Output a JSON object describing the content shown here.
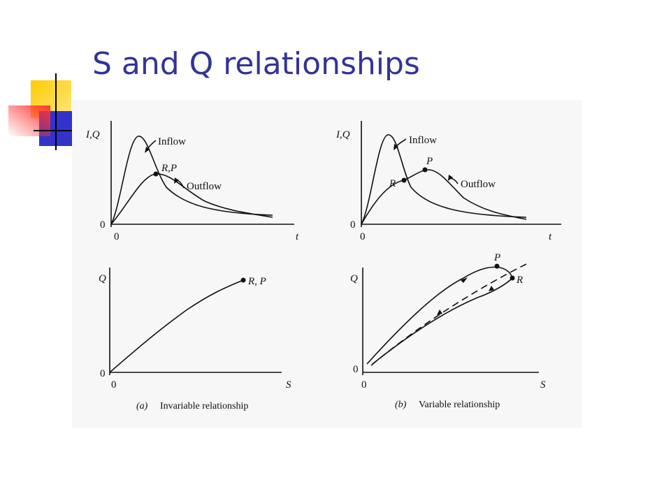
{
  "slide": {
    "title": "S and Q relationships"
  },
  "colors": {
    "title": "#333399",
    "deco_yellow": "#ffcc00",
    "deco_blue": "#3333cc",
    "deco_red": "#ff3333"
  },
  "panels": {
    "a_top": {
      "y_label": "I,Q",
      "x_label": "t",
      "origin": "0",
      "origin_left": "0",
      "inflow": "Inflow",
      "outflow": "Outflow",
      "point": "R,P"
    },
    "b_top": {
      "y_label": "I,Q",
      "x_label": "t",
      "origin": "0",
      "origin_left": "0",
      "inflow": "Inflow",
      "outflow": "Outflow",
      "point_r": "R",
      "point_p": "P"
    },
    "a_bottom": {
      "y_label": "Q",
      "x_label": "S",
      "origin": "0",
      "origin_left": "0",
      "point": "R, P",
      "caption_letter": "(a)",
      "caption": "Invariable relationship"
    },
    "b_bottom": {
      "y_label": "Q",
      "x_label": "S",
      "origin": "0",
      "origin_left": "0",
      "point_r": "R",
      "point_p": "P",
      "caption_letter": "(b)",
      "caption": "Variable relationship"
    }
  }
}
